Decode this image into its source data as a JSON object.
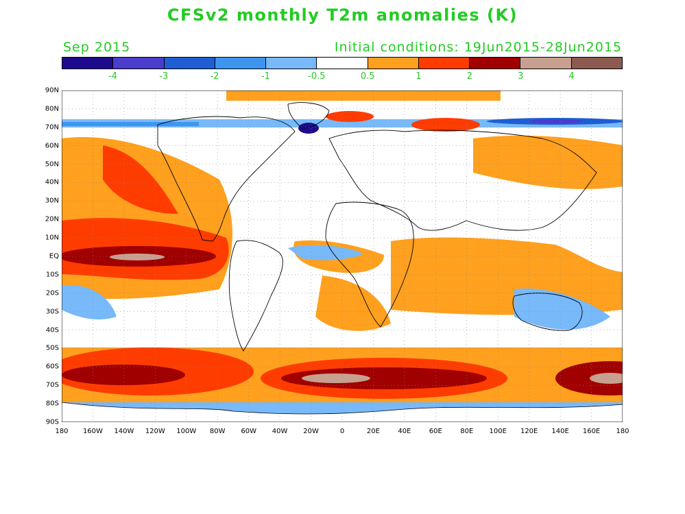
{
  "title": "CFSv2 monthly T2m anomalies (K)",
  "subtitle_left": "Sep 2015",
  "subtitle_right": "Initial conditions: 19Jun2015-28Jun2015",
  "colorbar": {
    "colors": [
      "#1e0a8c",
      "#4a3ccc",
      "#1e5ed2",
      "#3c96f0",
      "#78b9fa",
      "#ffffff",
      "#ffa01e",
      "#ff3c00",
      "#a00000",
      "#c8a090",
      "#8c5a50"
    ],
    "labels": [
      "-4",
      "-3",
      "-2",
      "-1",
      "-0.5",
      "0.5",
      "1",
      "2",
      "3",
      "4"
    ]
  },
  "map": {
    "lat_labels": [
      "90N",
      "80N",
      "70N",
      "60N",
      "50N",
      "40N",
      "30N",
      "20N",
      "10N",
      "EQ",
      "10S",
      "20S",
      "30S",
      "40S",
      "50S",
      "60S",
      "70S",
      "80S",
      "90S"
    ],
    "lon_labels": [
      "180",
      "160W",
      "140W",
      "120W",
      "100W",
      "80W",
      "60W",
      "40W",
      "20W",
      "0",
      "20E",
      "40E",
      "60E",
      "80E",
      "100E",
      "120E",
      "140E",
      "160E",
      "180"
    ]
  }
}
